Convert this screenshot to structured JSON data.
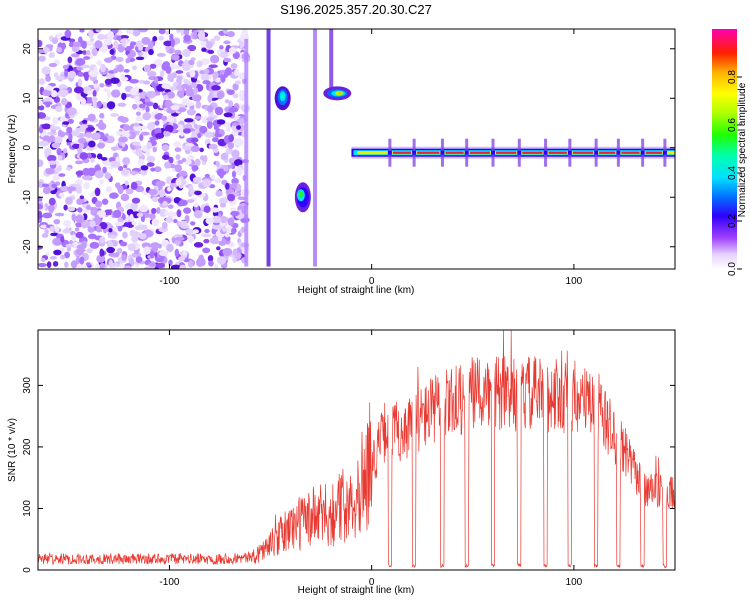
{
  "title": "S196.2025.357.20.30.C27",
  "colors": {
    "snr_line": "#e83a32",
    "track": "#e8f000",
    "core": "#e8203a"
  },
  "chart_data": [
    {
      "type": "heatmap",
      "title": "S196.2025.357.20.30.C27",
      "xlabel": "Height of straight line (km)",
      "ylabel": "Frequency (Hz)",
      "xlim": [
        -165,
        150
      ],
      "ylim": [
        -24.5,
        24
      ],
      "xticks": [
        -100,
        0,
        100
      ],
      "yticks": [
        -20,
        -10,
        0,
        10,
        20
      ],
      "colorbar": {
        "label": "Normalized spectral amplitude",
        "range": [
          0,
          1
        ],
        "ticks": [
          "0.0",
          "0.2",
          "0.4",
          "0.6",
          "0.8"
        ],
        "tick_values": [
          0.0,
          0.2,
          0.4,
          0.6,
          0.8
        ]
      },
      "features": [
        {
          "name": "noise",
          "x_range": [
            -165,
            -62
          ],
          "y_range": [
            -24.5,
            24
          ]
        },
        {
          "name": "carrier-line",
          "x_range": [
            -10,
            150
          ],
          "frequency": -1
        },
        {
          "name": "blob-upper-left",
          "x": -44,
          "frequency": 10
        },
        {
          "name": "blob-upper-right",
          "x": -17,
          "frequency": 11
        },
        {
          "name": "blob-lower",
          "x": -35,
          "frequency": -10
        }
      ]
    },
    {
      "type": "line",
      "xlabel": "Height of straight line (km)",
      "ylabel": "SNR (10 * v/v)",
      "xlim": [
        -165,
        150
      ],
      "ylim": [
        0,
        390
      ],
      "xticks": [
        -100,
        0,
        100
      ],
      "yticks": [
        0,
        100,
        200,
        300
      ],
      "series": [
        {
          "name": "SNR",
          "x": [
            -165,
            -140,
            -110,
            -80,
            -60,
            -50,
            -40,
            -30,
            -20,
            -10,
            0,
            7,
            15,
            30,
            50,
            70,
            90,
            100,
            110,
            118,
            125,
            135,
            150
          ],
          "values": [
            18,
            18,
            18,
            18,
            20,
            40,
            70,
            85,
            90,
            115,
            170,
            230,
            225,
            260,
            285,
            285,
            285,
            280,
            265,
            230,
            190,
            130,
            125
          ]
        }
      ],
      "dropouts_x": [
        9,
        21,
        35,
        47,
        60,
        73,
        86,
        98,
        111,
        122,
        134,
        145
      ]
    }
  ]
}
